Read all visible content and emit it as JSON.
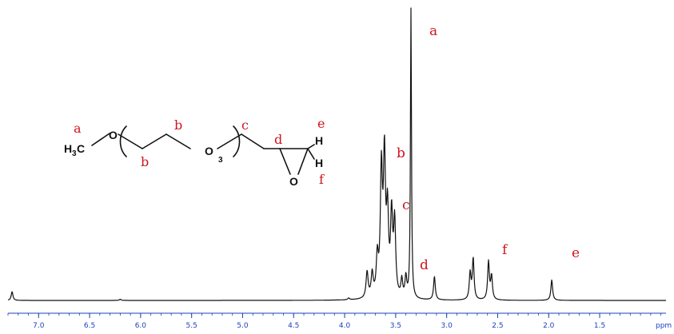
{
  "chart_data": {
    "type": "line",
    "title": "",
    "xlabel": "ppm",
    "ylabel": "",
    "xlim": [
      7.3,
      0.85
    ],
    "x_reversed": true,
    "x_ticks": [
      "7.0",
      "6.5",
      "6.0",
      "5.5",
      "5.0",
      "4.5",
      "4.0",
      "3.5",
      "3.0",
      "2.5",
      "2.0",
      "1.5"
    ],
    "x_unit_label": "ppm",
    "grid": false,
    "legend": "none",
    "colors": {
      "spectrum": "#111111",
      "axis": "#1a3fbf",
      "labels": "#d0141e"
    },
    "peaks": [
      {
        "label": "",
        "ppm": 7.26,
        "intensity": 0.03
      },
      {
        "label": "",
        "ppm": 6.2,
        "intensity": 0.004
      },
      {
        "label": "",
        "ppm": 3.96,
        "intensity": 0.006
      },
      {
        "label": "",
        "ppm": 3.78,
        "intensity": 0.09
      },
      {
        "label": "",
        "ppm": 3.73,
        "intensity": 0.08
      },
      {
        "label": "",
        "ppm": 3.68,
        "intensity": 0.13
      },
      {
        "label": "b",
        "ppm": 3.64,
        "intensity": 0.42
      },
      {
        "label": "b",
        "ppm": 3.61,
        "intensity": 0.46
      },
      {
        "label": "",
        "ppm": 3.58,
        "intensity": 0.27
      },
      {
        "label": "c",
        "ppm": 3.54,
        "intensity": 0.27
      },
      {
        "label": "",
        "ppm": 3.51,
        "intensity": 0.25
      },
      {
        "label": "",
        "ppm": 3.44,
        "intensity": 0.06
      },
      {
        "label": "",
        "ppm": 3.4,
        "intensity": 0.07
      },
      {
        "label": "a",
        "ppm": 3.35,
        "intensity": 1.0
      },
      {
        "label": "d",
        "ppm": 3.12,
        "intensity": 0.08
      },
      {
        "label": "e",
        "ppm": 2.77,
        "intensity": 0.09
      },
      {
        "label": "",
        "ppm": 2.74,
        "intensity": 0.14
      },
      {
        "label": "f",
        "ppm": 2.59,
        "intensity": 0.13
      },
      {
        "label": "",
        "ppm": 2.56,
        "intensity": 0.08
      },
      {
        "label": "",
        "ppm": 1.97,
        "intensity": 0.07
      }
    ],
    "peak_labels": [
      "a",
      "b",
      "c",
      "d",
      "e",
      "f"
    ]
  },
  "structure": {
    "atoms": {
      "methyl": "H",
      "methyl_sub": "3",
      "methyl_c": "C",
      "o1": "O",
      "o2": "O",
      "repeat": "3",
      "epoxide_o": "O",
      "h_e": "H",
      "h_f": "H"
    },
    "labels": {
      "a": "a",
      "b_top": "b",
      "b_bottom": "b",
      "c": "c",
      "d": "d",
      "e": "e",
      "f": "f"
    }
  }
}
